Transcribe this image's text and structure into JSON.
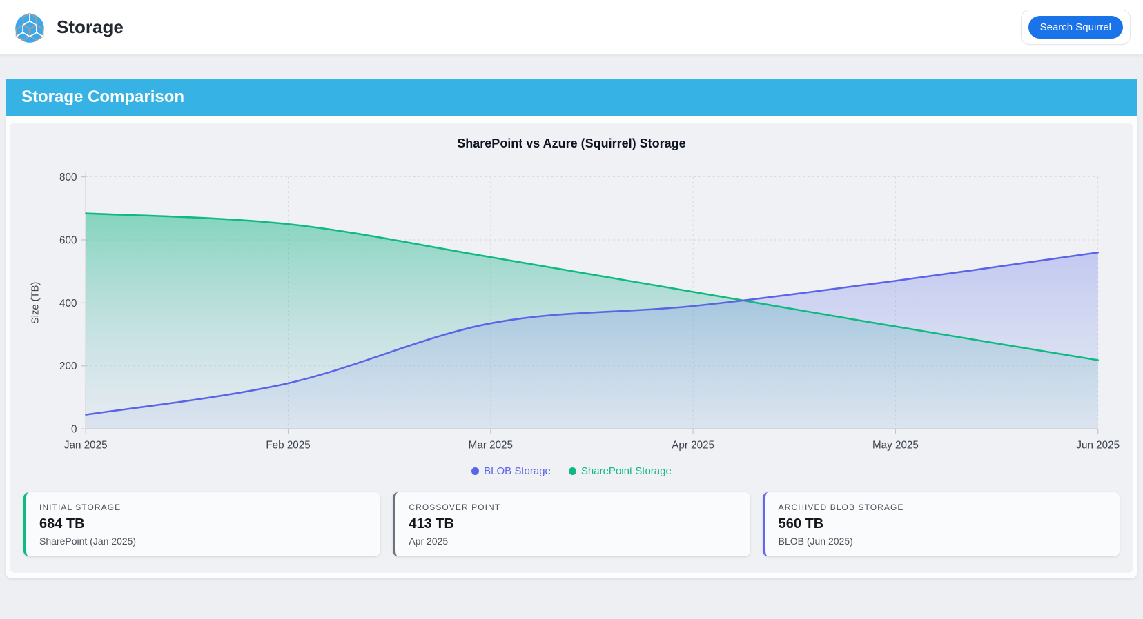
{
  "header": {
    "app_title": "Storage",
    "search_button_label": "Search Squirrel",
    "logo": "cube-logo"
  },
  "banner": {
    "title": "Storage Comparison",
    "color": "#36b3e4"
  },
  "chart_data": {
    "type": "area",
    "title": "SharePoint vs Azure (Squirrel) Storage",
    "x": [
      "Jan 2025",
      "Feb 2025",
      "Mar 2025",
      "Apr 2025",
      "May 2025",
      "Jun 2025"
    ],
    "series": [
      {
        "name": "BLOB Storage",
        "color": "#5b63e8",
        "fill_top": "rgba(99,102,241,0.45)",
        "fill_bottom": "rgba(150,180,225,0.12)",
        "values": [
          45,
          145,
          335,
          390,
          470,
          560
        ]
      },
      {
        "name": "SharePoint Storage",
        "color": "#10b981",
        "fill_top": "rgba(16,185,129,0.60)",
        "fill_bottom": "rgba(170,200,222,0.15)",
        "values": [
          684,
          650,
          545,
          435,
          325,
          218
        ]
      }
    ],
    "xlabel": "",
    "ylabel": "Size (TB)",
    "ylim": [
      0,
      800
    ],
    "yticks": [
      0,
      200,
      400,
      600,
      800
    ],
    "grid": true,
    "grid_style": "dashed",
    "legend_position": "bottom"
  },
  "stats": [
    {
      "label": "INITIAL STORAGE",
      "value": "684 TB",
      "sub": "SharePoint (Jan 2025)",
      "accent": "#10b981"
    },
    {
      "label": "CROSSOVER POINT",
      "value": "413 TB",
      "sub": "Apr 2025",
      "accent": "#6b7280"
    },
    {
      "label": "ARCHIVED BLOB STORAGE",
      "value": "560 TB",
      "sub": "BLOB (Jun 2025)",
      "accent": "#6366f1"
    }
  ]
}
